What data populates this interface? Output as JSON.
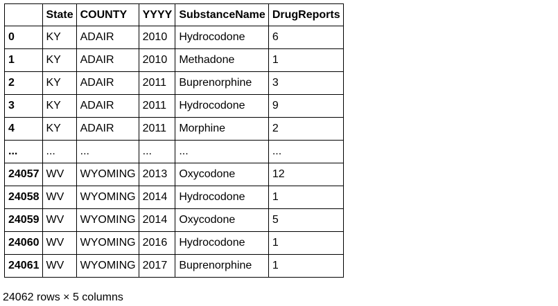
{
  "table": {
    "index_header": "",
    "columns": [
      "State",
      "COUNTY",
      "YYYY",
      "SubstanceName",
      "DrugReports"
    ],
    "rows": [
      {
        "index": "0",
        "cells": [
          "KY",
          "ADAIR",
          "2010",
          "Hydrocodone",
          "6"
        ]
      },
      {
        "index": "1",
        "cells": [
          "KY",
          "ADAIR",
          "2010",
          "Methadone",
          "1"
        ]
      },
      {
        "index": "2",
        "cells": [
          "KY",
          "ADAIR",
          "2011",
          "Buprenorphine",
          "3"
        ]
      },
      {
        "index": "3",
        "cells": [
          "KY",
          "ADAIR",
          "2011",
          "Hydrocodone",
          "9"
        ]
      },
      {
        "index": "4",
        "cells": [
          "KY",
          "ADAIR",
          "2011",
          "Morphine",
          "2"
        ]
      },
      {
        "index": "...",
        "cells": [
          "...",
          "...",
          "...",
          "...",
          "..."
        ]
      },
      {
        "index": "24057",
        "cells": [
          "WV",
          "WYOMING",
          "2013",
          "Oxycodone",
          "12"
        ]
      },
      {
        "index": "24058",
        "cells": [
          "WV",
          "WYOMING",
          "2014",
          "Hydrocodone",
          "1"
        ]
      },
      {
        "index": "24059",
        "cells": [
          "WV",
          "WYOMING",
          "2014",
          "Oxycodone",
          "5"
        ]
      },
      {
        "index": "24060",
        "cells": [
          "WV",
          "WYOMING",
          "2016",
          "Hydrocodone",
          "1"
        ]
      },
      {
        "index": "24061",
        "cells": [
          "WV",
          "WYOMING",
          "2017",
          "Buprenorphine",
          "1"
        ]
      }
    ]
  },
  "caption": "24062 rows × 5 columns"
}
